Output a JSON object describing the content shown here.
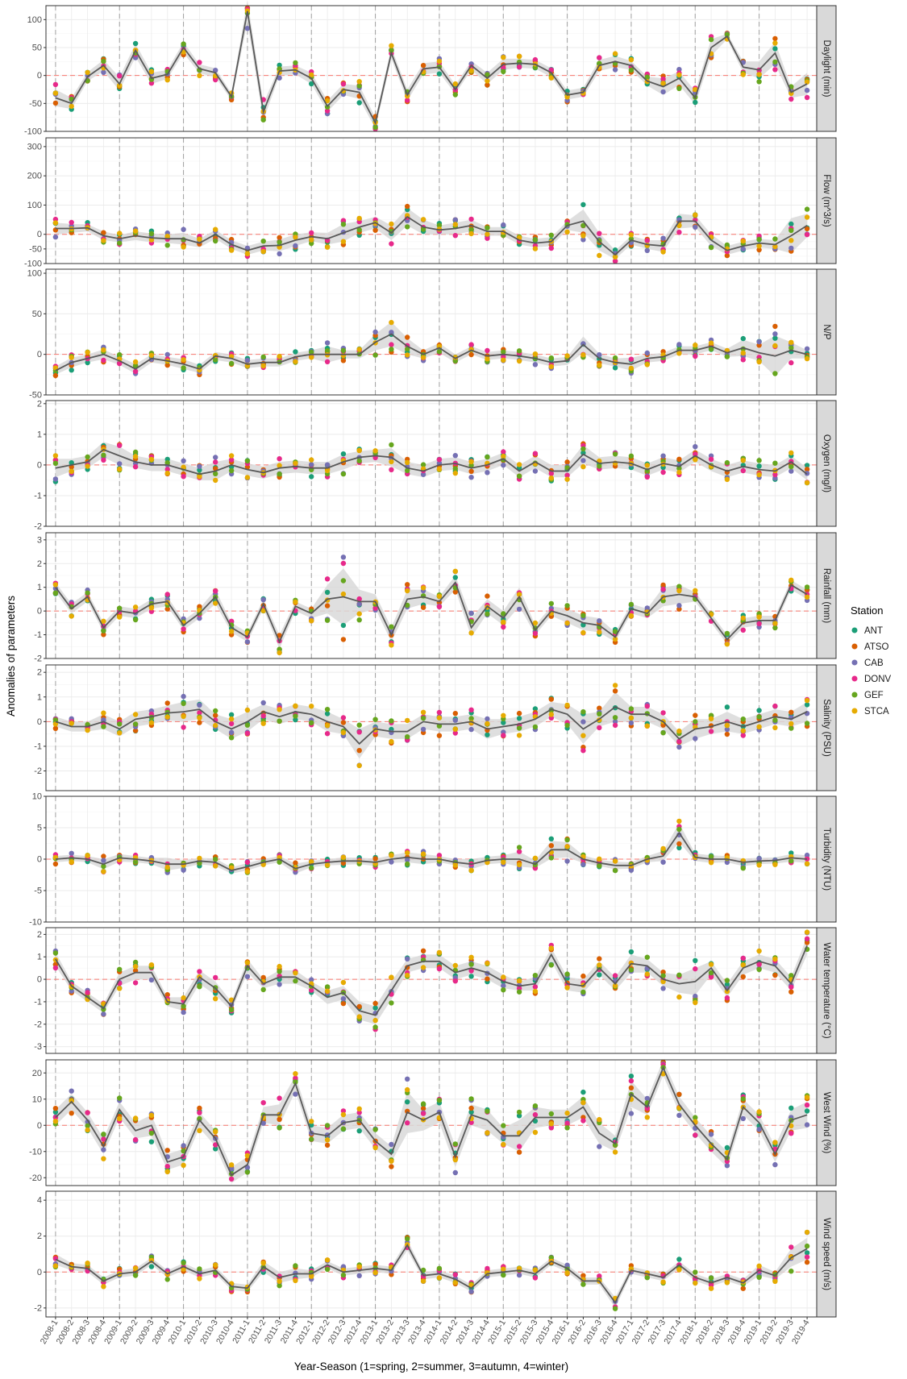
{
  "chart_data": {
    "type": "scatter",
    "y_axis_title": "Anomalies of parameters",
    "x_axis_title": "Year-Season (1=spring, 2=summer, 3=autumn, 4=winter)",
    "legend": {
      "title": "Station",
      "placement": "right",
      "entries": [
        "ANT",
        "ATSO",
        "CAB",
        "DONV",
        "GEF",
        "STCA"
      ]
    },
    "station_colors": {
      "ANT": "#1b9e77",
      "ATSO": "#d95f02",
      "CAB": "#7570b3",
      "DONV": "#e7298a",
      "GEF": "#66a61e",
      "STCA": "#e6ab02"
    },
    "theme": {
      "mean_line_color": "#595959",
      "ribbon_color": "#d9d9d9",
      "zero_line_color": "#f8766d",
      "strip_fill": "#d9d9d9",
      "grid": true
    },
    "x_categories": [
      "2008-1",
      "2008-2",
      "2008-3",
      "2008-4",
      "2009-1",
      "2009-2",
      "2009-3",
      "2009-4",
      "2010-1",
      "2010-2",
      "2010-3",
      "2010-4",
      "2011-1",
      "2011-2",
      "2011-3",
      "2011-4",
      "2012-1",
      "2012-2",
      "2012-3",
      "2012-4",
      "2013-1",
      "2013-2",
      "2013-3",
      "2013-4",
      "2014-1",
      "2014-2",
      "2014-3",
      "2014-4",
      "2015-1",
      "2015-2",
      "2015-3",
      "2015-4",
      "2016-1",
      "2016-2",
      "2016-3",
      "2016-4",
      "2017-1",
      "2017-2",
      "2017-3",
      "2017-4",
      "2018-1",
      "2018-2",
      "2018-3",
      "2018-4",
      "2019-1",
      "2019-2",
      "2019-3",
      "2019-4"
    ],
    "year_start_markers": [
      "2008-1",
      "2009-1",
      "2010-1",
      "2011-1",
      "2012-1",
      "2013-1",
      "2014-1",
      "2015-1",
      "2016-1",
      "2017-1",
      "2018-1",
      "2019-1"
    ],
    "panels": [
      {
        "label": "Daylight (min)",
        "ylim": [
          -100,
          125
        ],
        "yticks": [
          -100,
          -50,
          0,
          50,
          100
        ],
        "mean": [
          -40,
          -50,
          -2,
          18,
          -15,
          45,
          -5,
          2,
          50,
          12,
          5,
          -38,
          115,
          -65,
          8,
          10,
          -5,
          -55,
          -25,
          -30,
          -85,
          40,
          -35,
          12,
          15,
          -25,
          18,
          -5,
          20,
          22,
          20,
          5,
          -35,
          -30,
          18,
          25,
          18,
          -10,
          -20,
          -5,
          -40,
          50,
          70,
          15,
          10,
          40,
          -30,
          -15
        ],
        "spread": [
          15,
          10,
          8,
          10,
          12,
          12,
          10,
          8,
          10,
          8,
          8,
          6,
          20,
          15,
          8,
          8,
          10,
          10,
          10,
          12,
          10,
          10,
          10,
          10,
          10,
          8,
          8,
          10,
          10,
          8,
          8,
          8,
          8,
          8,
          10,
          10,
          8,
          8,
          15,
          12,
          12,
          15,
          5,
          10,
          15,
          20,
          10,
          20
        ]
      },
      {
        "label": "Flow (m^3/s)",
        "ylim": [
          -100,
          330
        ],
        "yticks": [
          -100,
          -50,
          0,
          100,
          200,
          300
        ],
        "mean": [
          20,
          20,
          22,
          -5,
          -15,
          -5,
          -12,
          -15,
          -15,
          -30,
          0,
          -35,
          -55,
          -40,
          -38,
          -20,
          -8,
          -15,
          5,
          25,
          40,
          5,
          60,
          25,
          15,
          20,
          30,
          10,
          10,
          -20,
          -30,
          -25,
          30,
          45,
          -25,
          -70,
          -20,
          -35,
          -40,
          45,
          45,
          -20,
          -55,
          -40,
          -30,
          -35,
          -5,
          30
        ],
        "spread": [
          20,
          15,
          12,
          15,
          12,
          15,
          15,
          15,
          20,
          15,
          15,
          15,
          15,
          15,
          20,
          20,
          15,
          20,
          30,
          20,
          20,
          25,
          30,
          25,
          15,
          20,
          20,
          15,
          15,
          15,
          15,
          15,
          15,
          40,
          30,
          15,
          15,
          15,
          20,
          25,
          20,
          20,
          15,
          15,
          15,
          15,
          60,
          40
        ]
      },
      {
        "label": "N/P",
        "ylim": [
          -50,
          105
        ],
        "yticks": [
          -50,
          0,
          50,
          100
        ],
        "mean": [
          -20,
          -10,
          -5,
          0,
          -8,
          -18,
          -5,
          -8,
          -12,
          -18,
          -2,
          -5,
          -12,
          -10,
          -10,
          -3,
          0,
          0,
          0,
          0,
          15,
          25,
          10,
          0,
          8,
          -5,
          5,
          -2,
          0,
          -2,
          -5,
          -10,
          -8,
          12,
          -5,
          -10,
          -12,
          -5,
          -3,
          5,
          5,
          10,
          2,
          8,
          2,
          -2,
          5,
          0
        ],
        "spread": [
          5,
          6,
          5,
          6,
          5,
          6,
          5,
          5,
          6,
          5,
          5,
          5,
          5,
          5,
          5,
          5,
          5,
          10,
          5,
          5,
          10,
          15,
          10,
          5,
          6,
          5,
          5,
          5,
          5,
          5,
          5,
          5,
          5,
          10,
          6,
          5,
          8,
          5,
          5,
          5,
          5,
          5,
          5,
          10,
          10,
          25,
          10,
          5
        ]
      },
      {
        "label": "Oxygen (mg/l)",
        "ylim": [
          -2,
          2.1
        ],
        "yticks": [
          -2,
          -1,
          0,
          1,
          2
        ],
        "mean": [
          -0.1,
          0,
          0.1,
          0.5,
          0.3,
          0.1,
          0,
          0,
          -0.15,
          -0.3,
          -0.2,
          0,
          -0.15,
          -0.25,
          -0.1,
          -0.05,
          -0.1,
          -0.1,
          0.1,
          0.25,
          0.3,
          0.25,
          -0.1,
          -0.2,
          0,
          0.05,
          -0.1,
          0,
          0.2,
          -0.2,
          0.1,
          -0.2,
          -0.2,
          0.35,
          0.05,
          0.1,
          0.05,
          -0.15,
          0.05,
          -0.05,
          0.3,
          0,
          -0.2,
          -0.05,
          -0.15,
          -0.2,
          0.1,
          -0.3
        ],
        "spread": [
          0.3,
          0.2,
          0.2,
          0.25,
          0.3,
          0.2,
          0.2,
          0.2,
          0.2,
          0.2,
          0.3,
          0.2,
          0.2,
          0.2,
          0.2,
          0.2,
          0.2,
          0.2,
          0.25,
          0.2,
          0.2,
          0.3,
          0.2,
          0.2,
          0.2,
          0.2,
          0.2,
          0.2,
          0.2,
          0.2,
          0.2,
          0.2,
          0.2,
          0.3,
          0.2,
          0.2,
          0.2,
          0.2,
          0.2,
          0.2,
          0.2,
          0.2,
          0.2,
          0.2,
          0.2,
          0.2,
          0.2,
          0.2
        ]
      },
      {
        "label": "Rainfall (mm)",
        "ylim": [
          -2,
          3.3
        ],
        "yticks": [
          -2,
          -1,
          0,
          1,
          2,
          3
        ],
        "mean": [
          1.0,
          0.1,
          0.6,
          -0.7,
          0,
          -0.1,
          0.3,
          0.4,
          -0.6,
          -0.1,
          0.6,
          -0.7,
          -1.1,
          0.3,
          -1.3,
          0.2,
          -0.1,
          0.5,
          0.6,
          0.4,
          0.4,
          -1,
          0.5,
          0.6,
          0.4,
          1.2,
          -0.7,
          0.2,
          -0.3,
          0.6,
          -0.8,
          0,
          -0.2,
          -0.5,
          -0.6,
          -1.1,
          0.1,
          -0.1,
          0.6,
          0.7,
          0.6,
          -0.3,
          -1.2,
          -0.5,
          -0.4,
          -0.4,
          1.1,
          0.7
        ],
        "spread": [
          0.2,
          0.2,
          0.2,
          0.2,
          0.2,
          0.2,
          0.2,
          0.2,
          0.2,
          0.2,
          0.3,
          0.2,
          0.2,
          0.2,
          0.3,
          0.2,
          0.2,
          0.6,
          1.2,
          0.5,
          0.3,
          0.3,
          0.4,
          0.3,
          0.2,
          0.3,
          0.4,
          0.3,
          0.3,
          0.4,
          0.2,
          0.2,
          0.3,
          0.3,
          0.3,
          0.2,
          0.2,
          0.2,
          0.4,
          0.4,
          0.2,
          0.2,
          0.2,
          0.2,
          0.2,
          0.2,
          0.2,
          0.2
        ]
      },
      {
        "label": "Salinity (PSU)",
        "ylim": [
          -2.8,
          2.3
        ],
        "yticks": [
          -2,
          -1,
          0,
          1,
          2
        ],
        "mean": [
          0,
          -0.2,
          -0.2,
          0,
          -0.3,
          0.1,
          0.2,
          0.35,
          0.4,
          0.5,
          0,
          -0.3,
          0,
          0.4,
          0.2,
          0.4,
          0.3,
          0,
          -0.2,
          -0.9,
          -0.3,
          -0.4,
          -0.4,
          0,
          -0.1,
          -0.1,
          0,
          -0.3,
          -0.2,
          -0.1,
          0.1,
          0.5,
          0.3,
          -0.3,
          0.1,
          0.6,
          0.3,
          0.3,
          0,
          -0.7,
          -0.3,
          -0.2,
          0,
          -0.2,
          0,
          0.2,
          0.1,
          0.4
        ],
        "spread": [
          0.2,
          0.2,
          0.2,
          0.3,
          0.3,
          0.3,
          0.3,
          0.3,
          0.4,
          0.4,
          0.3,
          0.4,
          0.4,
          0.3,
          0.3,
          0.3,
          0.3,
          0.4,
          0.3,
          0.6,
          0.3,
          0.3,
          0.3,
          0.3,
          0.3,
          0.3,
          0.3,
          0.4,
          0.3,
          0.3,
          0.3,
          0.3,
          0.4,
          0.6,
          0.3,
          0.6,
          0.3,
          0.3,
          0.3,
          0.3,
          0.4,
          0.3,
          0.4,
          0.3,
          0.3,
          0.3,
          0.3,
          0.4
        ]
      },
      {
        "label": "Turbidity (NTU)",
        "ylim": [
          -10,
          10
        ],
        "yticks": [
          -10,
          -5,
          0,
          5,
          10
        ],
        "mean": [
          0,
          0.2,
          0,
          -0.8,
          0.2,
          0,
          -0.3,
          -0.8,
          -0.8,
          -0.3,
          -0.5,
          -1.8,
          -1.2,
          -0.5,
          0,
          -1.5,
          -0.8,
          -0.5,
          -0.3,
          -0.3,
          -0.5,
          0,
          0.3,
          0,
          0,
          -0.5,
          -0.8,
          -0.2,
          0,
          0,
          -0.8,
          1.5,
          1.5,
          0,
          -0.6,
          -1,
          -1,
          0,
          0.5,
          4.2,
          0.3,
          0,
          0,
          -0.5,
          -0.3,
          -0.2,
          0.2,
          0
        ],
        "spread": [
          0.5,
          0.5,
          0.5,
          0.8,
          0.6,
          0.5,
          0.5,
          1,
          0.6,
          0.5,
          0.6,
          0.5,
          0.6,
          0.5,
          0.5,
          0.8,
          0.5,
          0.5,
          0.6,
          0.5,
          0.6,
          0.6,
          0.8,
          0.8,
          0.5,
          0.5,
          0.8,
          0.6,
          0.6,
          1.2,
          0.6,
          1.4,
          1.2,
          0.6,
          0.5,
          0.6,
          0.5,
          0.5,
          0.8,
          1.5,
          0.6,
          0.6,
          0.5,
          0.6,
          0.5,
          0.5,
          0.6,
          0.6
        ]
      },
      {
        "label": "Water temperature (°C)",
        "ylim": [
          -3.3,
          2.3
        ],
        "yticks": [
          -3,
          -2,
          -1,
          0,
          1,
          2
        ],
        "mean": [
          0.9,
          -0.3,
          -0.8,
          -1.3,
          0,
          0.3,
          0.3,
          -1.0,
          -1.1,
          0.1,
          -0.4,
          -1.2,
          0.6,
          -0.2,
          0.1,
          0.1,
          -0.3,
          -0.8,
          -0.6,
          -1.4,
          -1.6,
          -0.5,
          0.6,
          0.8,
          0.8,
          0.3,
          0.5,
          0.3,
          -0.1,
          -0.3,
          -0.2,
          1.1,
          -0.2,
          -0.3,
          0.5,
          -0.2,
          0.7,
          0.6,
          0,
          -0.2,
          -0.1,
          0.5,
          -0.5,
          0.5,
          0.8,
          0.6,
          -0.2,
          1.5
        ],
        "spread": [
          0.3,
          0.2,
          0.2,
          0.2,
          0.3,
          0.3,
          0.3,
          0.2,
          0.3,
          0.3,
          0.3,
          0.2,
          0.3,
          0.2,
          0.3,
          0.3,
          0.2,
          0.3,
          0.3,
          0.4,
          0.4,
          0.4,
          0.3,
          0.3,
          0.3,
          0.3,
          0.3,
          0.3,
          0.3,
          0.2,
          0.3,
          0.3,
          0.3,
          0.3,
          0.3,
          0.3,
          0.4,
          0.3,
          0.3,
          0.4,
          0.6,
          0.3,
          0.3,
          0.3,
          0.3,
          0.3,
          0.3,
          0.4
        ]
      },
      {
        "label": "West Wind (%)",
        "ylim": [
          -23,
          25
        ],
        "yticks": [
          -20,
          -10,
          0,
          10,
          20
        ],
        "mean": [
          3,
          9,
          2,
          -8,
          6,
          -2,
          0,
          -14,
          -12,
          2,
          -5,
          -19,
          -15,
          4,
          4,
          16,
          -3,
          -4,
          1,
          2,
          -6,
          -11,
          5,
          2,
          5,
          -12,
          4,
          2,
          -4,
          -4,
          3,
          3,
          3,
          7,
          -3,
          -7,
          12,
          7,
          22,
          8,
          0,
          -7,
          -13,
          7,
          1,
          -11,
          2,
          4
        ],
        "spread": [
          3,
          3,
          3,
          3,
          3,
          3,
          4,
          3,
          3,
          3,
          3,
          3,
          3,
          3,
          4,
          3,
          3,
          3,
          3,
          3,
          3,
          3,
          8,
          4,
          4,
          4,
          4,
          4,
          3,
          6,
          4,
          3,
          3,
          4,
          4,
          3,
          5,
          3,
          3,
          3,
          3,
          3,
          3,
          3,
          3,
          3,
          4,
          5
        ]
      },
      {
        "label": "Wind speed (m/s)",
        "ylim": [
          -2.5,
          4.5
        ],
        "yticks": [
          -2,
          0,
          2,
          4
        ],
        "mean": [
          0.7,
          0.3,
          0.2,
          -0.5,
          -0.1,
          0,
          0.6,
          -0.1,
          0.3,
          -0.1,
          0.1,
          -0.8,
          -0.9,
          0.3,
          -0.3,
          -0.1,
          -0.1,
          0.4,
          0,
          0.1,
          0.2,
          0.1,
          1.5,
          -0.2,
          -0.1,
          -0.4,
          -0.9,
          -0.1,
          0,
          0.1,
          -0.1,
          0.6,
          0.2,
          -0.5,
          -0.5,
          -1.7,
          0.1,
          -0.1,
          -0.3,
          0.4,
          -0.3,
          -0.6,
          -0.3,
          -0.6,
          0.1,
          -0.2,
          0.8,
          1.3
        ],
        "spread": [
          0.3,
          0.2,
          0.2,
          0.2,
          0.2,
          0.2,
          0.2,
          0.2,
          0.2,
          0.2,
          0.2,
          0.2,
          0.2,
          0.3,
          0.3,
          0.3,
          0.2,
          0.2,
          0.2,
          0.2,
          0.2,
          0.2,
          0.3,
          0.2,
          0.2,
          0.2,
          0.2,
          0.2,
          0.2,
          0.2,
          0.2,
          0.2,
          0.2,
          0.2,
          0.2,
          0.3,
          0.2,
          0.2,
          0.2,
          0.2,
          0.2,
          0.2,
          0.2,
          0.2,
          0.3,
          0.2,
          0.5,
          0.6
        ]
      }
    ]
  }
}
